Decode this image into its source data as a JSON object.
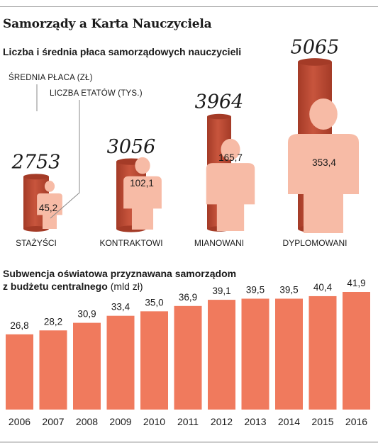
{
  "title": "Samorządy a Karta Nauczyciela",
  "chart_data": [
    {
      "type": "bar",
      "subtitle": "Liczba i średnia płaca samorządowych nauczycieli",
      "legend": {
        "salary_label": "ŚREDNIA PŁACA (ZŁ)",
        "count_label": "LICZBA ETATÓW (TYS.)"
      },
      "categories": [
        "STAŻYŚCI",
        "KONTRAKTOWI",
        "MIANOWANI",
        "DYPLOMOWANI"
      ],
      "series": [
        {
          "name": "ŚREDNIA PŁACA (ZŁ)",
          "values": [
            2753,
            3056,
            3964,
            5065
          ],
          "labels": [
            "2753",
            "3056",
            "3964",
            "5065"
          ]
        },
        {
          "name": "LICZBA ETATÓW (TYS.)",
          "values": [
            45.2,
            102.1,
            165.7,
            353.4
          ],
          "labels": [
            "45,2",
            "102,1",
            "165,7",
            "353,4"
          ]
        }
      ],
      "colors": {
        "cylinder": "#c8553d",
        "cylinder_dark": "#a43b27",
        "person": "#f7bba6"
      }
    },
    {
      "type": "bar",
      "title": "Subwencja oświatowa przyznawana samorządom",
      "title_line2": "z budżetu centralnego",
      "unit": "(mld zł)",
      "categories": [
        "2006",
        "2007",
        "2008",
        "2009",
        "2010",
        "2011",
        "2012",
        "2013",
        "2014",
        "2015",
        "2016"
      ],
      "values": [
        26.8,
        28.2,
        30.9,
        33.4,
        35.0,
        36.9,
        39.1,
        39.5,
        39.5,
        40.4,
        41.9
      ],
      "labels": [
        "26,8",
        "28,2",
        "30,9",
        "33,4",
        "35,0",
        "36,9",
        "39,1",
        "39,5",
        "39,5",
        "40,4",
        "41,9"
      ],
      "colors": {
        "bar": "#f07a5d"
      }
    }
  ]
}
